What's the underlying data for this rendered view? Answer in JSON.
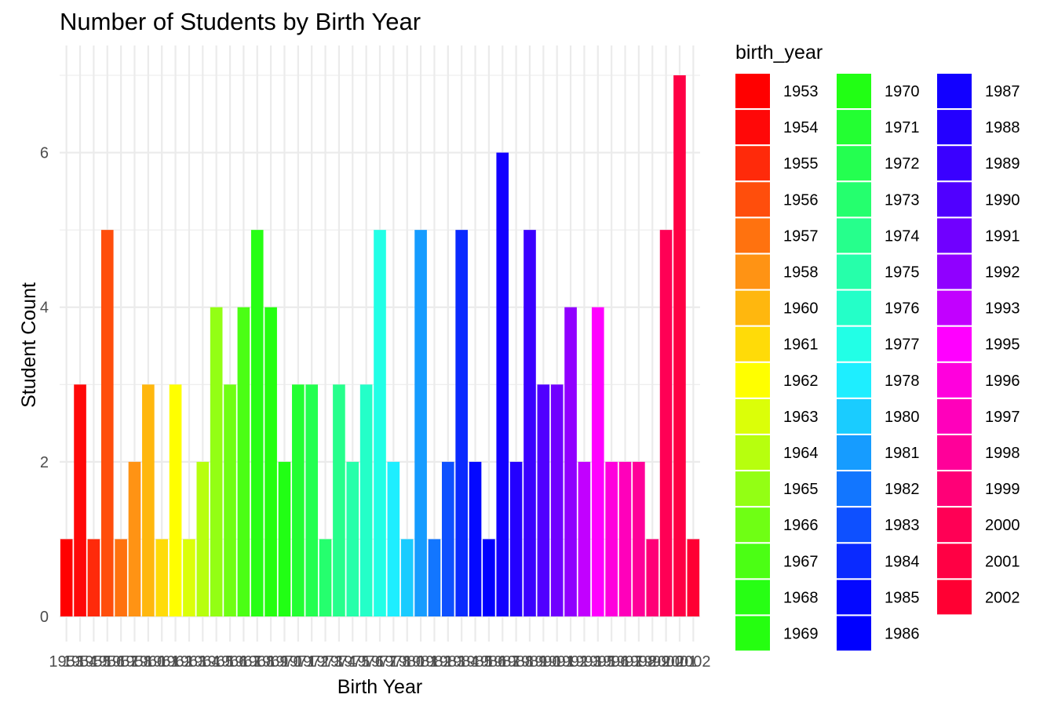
{
  "chart_data": {
    "type": "bar",
    "title": "Number of Students by Birth Year",
    "xlabel": "Birth Year",
    "ylabel": "Student Count",
    "ylim": [
      0,
      7.35
    ],
    "y_ticks": [
      0,
      2,
      4,
      6
    ],
    "grid": true,
    "legend": {
      "title": "birth_year",
      "placement": "right",
      "columns": 3
    },
    "categories": [
      "1953",
      "1954",
      "1955",
      "1956",
      "1957",
      "1958",
      "1960",
      "1961",
      "1962",
      "1963",
      "1964",
      "1965",
      "1966",
      "1967",
      "1968",
      "1969",
      "1970",
      "1971",
      "1972",
      "1973",
      "1974",
      "1975",
      "1976",
      "1977",
      "1978",
      "1980",
      "1981",
      "1982",
      "1983",
      "1984",
      "1985",
      "1986",
      "1987",
      "1988",
      "1989",
      "1990",
      "1991",
      "1992",
      "1993",
      "1995",
      "1996",
      "1997",
      "1998",
      "1999",
      "2000",
      "2001",
      "2002"
    ],
    "values": [
      1,
      3,
      1,
      5,
      1,
      2,
      3,
      1,
      3,
      1,
      2,
      4,
      3,
      4,
      5,
      4,
      2,
      3,
      3,
      1,
      3,
      2,
      3,
      5,
      2,
      1,
      5,
      1,
      2,
      5,
      2,
      1,
      6,
      2,
      5,
      3,
      3,
      4,
      2,
      4,
      2,
      2,
      2,
      1,
      5,
      7,
      1
    ],
    "colors": [
      "#FF0000",
      "#FF0808",
      "#FF2A0A",
      "#FF4E0C",
      "#FF720F",
      "#FF9314",
      "#FFB70E",
      "#FFDB08",
      "#FFFF00",
      "#DBFF08",
      "#B7FF0E",
      "#93FF14",
      "#6FFF14",
      "#4BFF14",
      "#27FF14",
      "#25FF10",
      "#21FF14",
      "#23FF32",
      "#24FF50",
      "#25FF6E",
      "#26FF8C",
      "#26FFAA",
      "#24FFC8",
      "#22FFE6",
      "#1EEEFF",
      "#1ACCFF",
      "#169CFF",
      "#1276FF",
      "#0E50FF",
      "#0A2AFF",
      "#0408FF",
      "#0000FF",
      "#1200FF",
      "#2400FF",
      "#3A00FF",
      "#5000FF",
      "#7000FF",
      "#9000FF",
      "#C200FF",
      "#FF00FF",
      "#FF00DD",
      "#FF00BB",
      "#FF0099",
      "#FF0077",
      "#FF0055",
      "#FF0044",
      "#FF0033"
    ]
  }
}
